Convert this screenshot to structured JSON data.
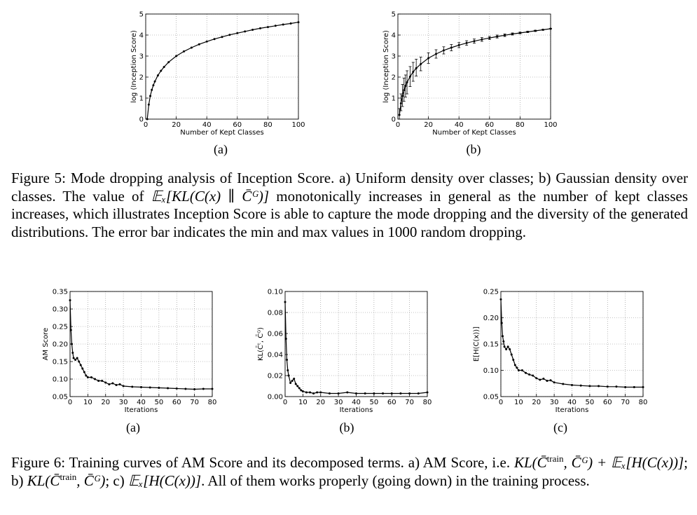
{
  "figure5": {
    "panels": [
      {
        "label": "(a)"
      },
      {
        "label": "(b)"
      }
    ],
    "caption": {
      "number": "Figure 5:",
      "text_before": "Mode dropping analysis of Inception Score. a) Uniform density over classes; b) Gaussian density over classes. The value of ",
      "formula": "𝔼ₓ[KL(C(x) ∥ C̄ᴳ)]",
      "text_after": " monotonically increases in general as the number of kept classes increases, which illustrates Inception Score is able to capture the mode dropping and the diversity of the generated distributions. The error bar indicates the min and max values in 1000 random dropping."
    }
  },
  "figure6": {
    "panels": [
      {
        "label": "(a)"
      },
      {
        "label": "(b)"
      },
      {
        "label": "(c)"
      }
    ],
    "caption": {
      "number": "Figure 6:",
      "text_1": "Training curves of AM Score and its decomposed terms. a) AM Score, i.e. ",
      "formula_1": "KL(C̄",
      "sup_1": "train",
      "formula_1b": ", C̄ᴳ) +",
      "formula_2": "𝔼ₓ[H(C(x))]",
      "text_2": "; b) ",
      "formula_3": "KL(C̄",
      "sup_3": "train",
      "formula_3b": ", C̄ᴳ)",
      "text_3": "; c) ",
      "formula_4": "𝔼ₓ[H(C(x))]",
      "text_4": ". All of them works properly (going down) in the training process."
    }
  },
  "chart_data": [
    {
      "type": "line",
      "xlabel": "Number of Kept Classes",
      "ylabel": "log (Inception Score)",
      "xlim": [
        0,
        100
      ],
      "ylim": [
        0,
        5
      ],
      "xticks": [
        0,
        20,
        40,
        60,
        80,
        100
      ],
      "yticks": [
        0,
        1,
        2,
        3,
        4,
        5
      ],
      "grid": true,
      "series": [
        {
          "x": [
            1,
            2,
            3,
            4,
            5,
            6,
            8,
            10,
            12,
            15,
            20,
            25,
            30,
            35,
            40,
            45,
            50,
            55,
            60,
            65,
            70,
            75,
            80,
            85,
            90,
            95,
            100
          ],
          "values": [
            0.0,
            0.69,
            1.1,
            1.39,
            1.61,
            1.79,
            2.08,
            2.3,
            2.48,
            2.71,
            3.0,
            3.22,
            3.4,
            3.56,
            3.69,
            3.81,
            3.91,
            4.01,
            4.09,
            4.17,
            4.25,
            4.32,
            4.38,
            4.44,
            4.5,
            4.55,
            4.61
          ]
        }
      ]
    },
    {
      "type": "line",
      "xlabel": "Number of Kept Classes",
      "ylabel": "log (Inception Score)",
      "xlim": [
        0,
        100
      ],
      "ylim": [
        0,
        5
      ],
      "xticks": [
        0,
        20,
        40,
        60,
        80,
        100
      ],
      "yticks": [
        0,
        1,
        2,
        3,
        4,
        5
      ],
      "grid": true,
      "error_bars": "min and max",
      "series": [
        {
          "x": [
            1,
            2,
            3,
            4,
            5,
            6,
            8,
            10,
            12,
            15,
            20,
            25,
            30,
            35,
            40,
            45,
            50,
            55,
            60,
            65,
            70,
            75,
            80,
            85,
            90,
            95,
            100
          ],
          "values": [
            0.2,
            0.75,
            1.1,
            1.38,
            1.58,
            1.75,
            2.02,
            2.25,
            2.42,
            2.62,
            2.9,
            3.1,
            3.27,
            3.4,
            3.52,
            3.62,
            3.71,
            3.79,
            3.86,
            3.93,
            3.99,
            4.05,
            4.1,
            4.15,
            4.2,
            4.25,
            4.3
          ],
          "min": [
            0.0,
            0.4,
            0.6,
            0.85,
            1.05,
            1.2,
            1.55,
            1.8,
            2.05,
            2.3,
            2.65,
            2.9,
            3.1,
            3.25,
            3.4,
            3.51,
            3.61,
            3.7,
            3.79,
            3.86,
            3.93,
            4.0,
            4.06,
            4.12,
            4.17,
            4.23,
            4.29
          ],
          "max": [
            0.5,
            1.2,
            1.65,
            1.95,
            2.1,
            2.3,
            2.5,
            2.7,
            2.85,
            2.95,
            3.15,
            3.3,
            3.44,
            3.55,
            3.64,
            3.73,
            3.81,
            3.88,
            3.93,
            4.0,
            4.05,
            4.1,
            4.14,
            4.18,
            4.23,
            4.27,
            4.31
          ]
        }
      ]
    },
    {
      "type": "line",
      "xlabel": "Iterations",
      "ylabel": "AM Score",
      "xlim": [
        0,
        80
      ],
      "ylim": [
        0.05,
        0.35
      ],
      "xticks": [
        0,
        10,
        20,
        30,
        40,
        50,
        60,
        70,
        80
      ],
      "yticks": [
        0.05,
        0.1,
        0.15,
        0.2,
        0.25,
        0.3,
        0.35
      ],
      "grid": true,
      "series": [
        {
          "x": [
            0,
            0.5,
            1,
            1.5,
            2,
            3,
            4,
            5,
            6,
            7,
            8,
            9,
            10,
            12,
            14,
            16,
            18,
            20,
            22,
            24,
            26,
            28,
            30,
            35,
            40,
            45,
            50,
            55,
            60,
            65,
            70,
            75,
            80
          ],
          "values": [
            0.325,
            0.24,
            0.2,
            0.175,
            0.16,
            0.155,
            0.16,
            0.15,
            0.14,
            0.13,
            0.12,
            0.11,
            0.105,
            0.105,
            0.1,
            0.095,
            0.095,
            0.09,
            0.085,
            0.088,
            0.083,
            0.085,
            0.08,
            0.078,
            0.077,
            0.076,
            0.075,
            0.074,
            0.073,
            0.072,
            0.071,
            0.072,
            0.072
          ]
        }
      ]
    },
    {
      "type": "line",
      "xlabel": "Iterations",
      "ylabel": "KL(C̄ᵗ, C̄ᴳ)",
      "xlim": [
        0,
        80
      ],
      "ylim": [
        0.0,
        0.1
      ],
      "xticks": [
        0,
        10,
        20,
        30,
        40,
        50,
        60,
        70,
        80
      ],
      "yticks": [
        0.0,
        0.02,
        0.04,
        0.06,
        0.08,
        0.1
      ],
      "grid": true,
      "series": [
        {
          "x": [
            0,
            0.5,
            1,
            1.5,
            2,
            3,
            4,
            5,
            6,
            7,
            8,
            9,
            10,
            12,
            14,
            16,
            18,
            20,
            25,
            30,
            35,
            40,
            45,
            50,
            55,
            60,
            65,
            70,
            75,
            80
          ],
          "values": [
            0.09,
            0.055,
            0.035,
            0.025,
            0.02,
            0.013,
            0.015,
            0.017,
            0.012,
            0.01,
            0.008,
            0.006,
            0.005,
            0.004,
            0.004,
            0.003,
            0.004,
            0.004,
            0.003,
            0.003,
            0.004,
            0.003,
            0.003,
            0.003,
            0.003,
            0.003,
            0.003,
            0.003,
            0.003,
            0.004
          ]
        }
      ]
    },
    {
      "type": "line",
      "xlabel": "Iterations",
      "ylabel": "E[H(C(x))]",
      "xlim": [
        0,
        80
      ],
      "ylim": [
        0.05,
        0.25
      ],
      "xticks": [
        0,
        10,
        20,
        30,
        40,
        50,
        60,
        70,
        80
      ],
      "yticks": [
        0.05,
        0.1,
        0.15,
        0.2,
        0.25
      ],
      "grid": true,
      "series": [
        {
          "x": [
            0,
            0.5,
            1,
            1.5,
            2,
            3,
            4,
            5,
            6,
            7,
            8,
            9,
            10,
            12,
            14,
            16,
            18,
            20,
            22,
            24,
            26,
            28,
            30,
            35,
            40,
            45,
            50,
            55,
            60,
            65,
            70,
            75,
            80
          ],
          "values": [
            0.235,
            0.19,
            0.165,
            0.155,
            0.145,
            0.14,
            0.145,
            0.14,
            0.13,
            0.12,
            0.11,
            0.105,
            0.1,
            0.1,
            0.095,
            0.092,
            0.09,
            0.085,
            0.082,
            0.084,
            0.08,
            0.081,
            0.077,
            0.074,
            0.072,
            0.071,
            0.07,
            0.07,
            0.069,
            0.069,
            0.068,
            0.068,
            0.068
          ]
        }
      ]
    }
  ]
}
